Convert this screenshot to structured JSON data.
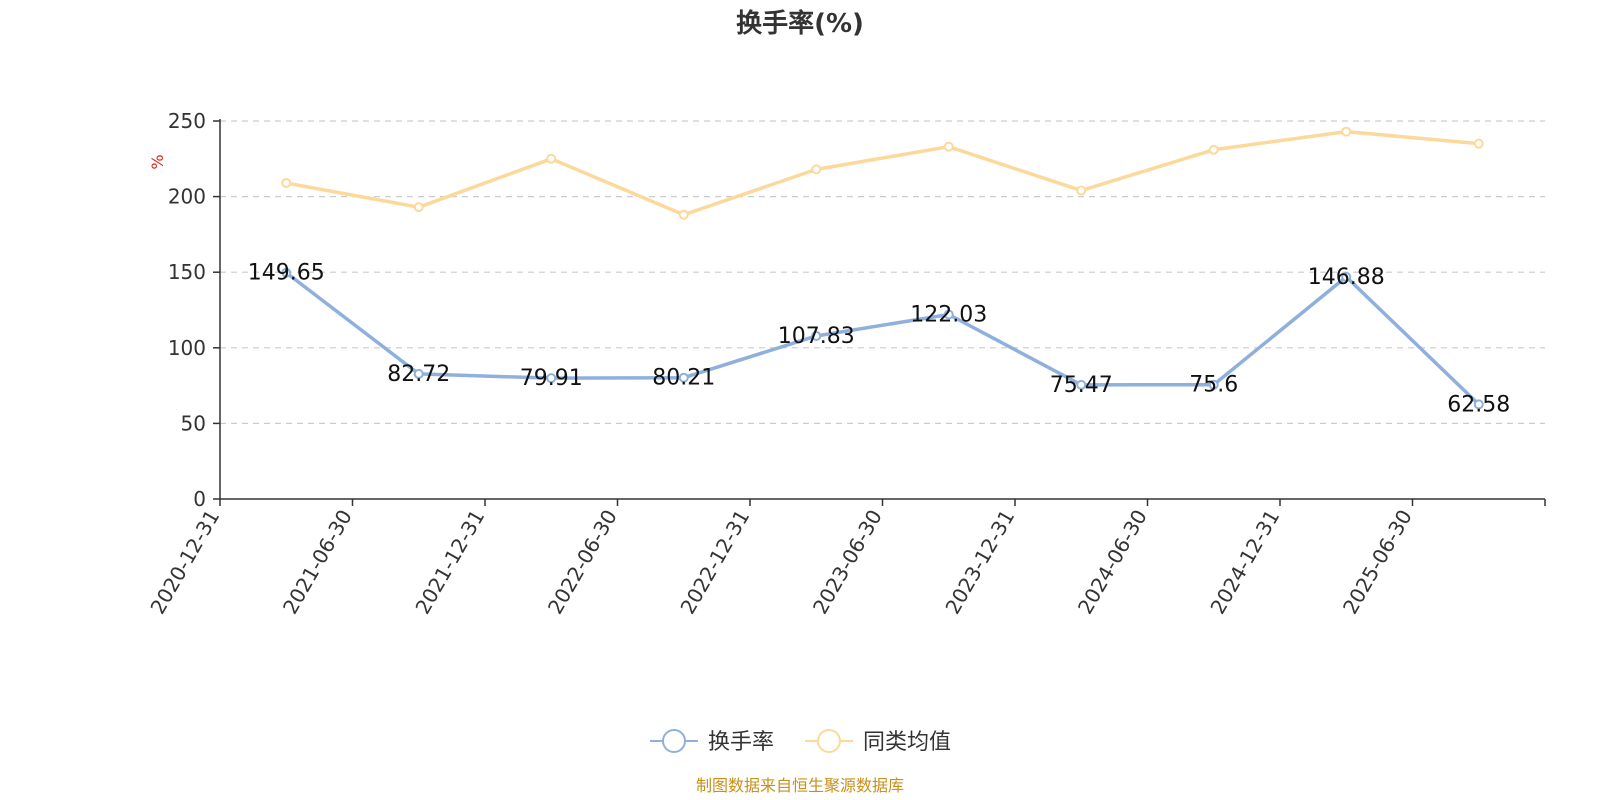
{
  "chart_data": {
    "type": "line",
    "title": "换手率(%)",
    "ylabel": "%",
    "ylim": [
      0,
      250
    ],
    "yticks": [
      0,
      50,
      100,
      150,
      200,
      250
    ],
    "grid": true,
    "legend_position": "bottom",
    "categories": [
      "2020-12-31",
      "2021-06-30",
      "2021-12-31",
      "2022-06-30",
      "2022-12-31",
      "2023-06-30",
      "2023-12-31",
      "2024-06-30",
      "2024-12-31",
      "2025-06-30"
    ],
    "series": [
      {
        "name": "换手率",
        "color": "#8fb0dd",
        "values": [
          149.65,
          82.72,
          79.91,
          80.21,
          107.83,
          122.03,
          75.47,
          75.6,
          146.88,
          62.58
        ],
        "data_labels": [
          "149.65",
          "82.72",
          "79.91",
          "80.21",
          "107.83",
          "122.03",
          "75.47",
          "75.6",
          "146.88",
          "62.58"
        ]
      },
      {
        "name": "同类均值",
        "color": "#fcd99a",
        "values": [
          209,
          193,
          225,
          188,
          218,
          233,
          204,
          231,
          243,
          235
        ]
      }
    ]
  },
  "colors": {
    "axis": "#333333",
    "grid": "#cccccc",
    "unit": "#e0261c",
    "source": "#c8901c"
  },
  "source_note": "制图数据来自恒生聚源数据库"
}
